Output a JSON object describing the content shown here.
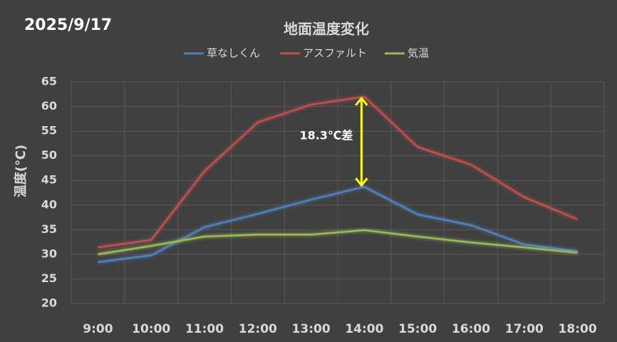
{
  "chart_data": {
    "type": "line",
    "title": "地面温度変化",
    "date": "2025/9/17",
    "y_label": "温度(℃)",
    "categories": [
      "9:00",
      "10:00",
      "11:00",
      "12:00",
      "13:00",
      "14:00",
      "15:00",
      "16:00",
      "17:00",
      "18:00"
    ],
    "series": [
      {
        "name": "草なしくん",
        "color": "#4f81bd",
        "values": [
          28.4,
          29.8,
          35.5,
          38.2,
          41.1,
          43.7,
          38.1,
          35.9,
          32.0,
          30.6
        ]
      },
      {
        "name": "アスファルト",
        "color": "#c0504d",
        "values": [
          31.4,
          32.9,
          46.9,
          56.8,
          60.4,
          62.0,
          51.8,
          48.2,
          41.6,
          37.1
        ]
      },
      {
        "name": "気温",
        "color": "#9bbb59",
        "values": [
          30.0,
          31.7,
          33.6,
          34.0,
          34.0,
          34.9,
          33.6,
          32.4,
          31.4,
          30.3
        ]
      }
    ],
    "annotation": "18.3℃差",
    "ylim": [
      20,
      65
    ],
    "yticks": [
      20,
      25,
      30,
      35,
      40,
      45,
      50,
      55,
      60,
      65
    ],
    "grid": true
  }
}
